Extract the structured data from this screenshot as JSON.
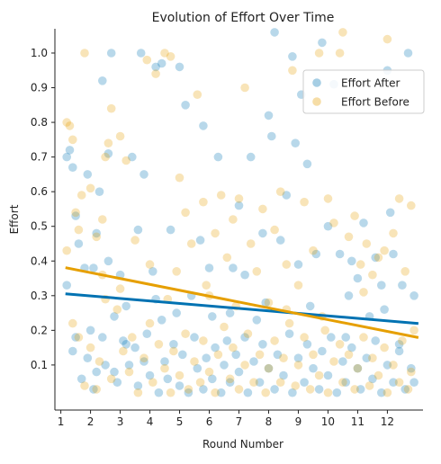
{
  "chart_data": {
    "type": "scatter",
    "title": "Evolution of Effort Over Time",
    "xlabel": "Round Number",
    "ylabel": "Effort",
    "x_ticks": [
      1,
      2,
      3,
      4,
      5,
      6,
      7,
      8,
      9,
      10,
      11,
      12
    ],
    "y_ticks": [
      0.1,
      0.2,
      0.3,
      0.4,
      0.5,
      0.6,
      0.7,
      0.8,
      0.9,
      1.0
    ],
    "xlim": [
      0.8,
      13.2
    ],
    "ylim": [
      -0.03,
      1.07
    ],
    "grid": false,
    "legend_position": "top-right",
    "series": [
      {
        "name": "Effort After",
        "color": "#0072b2",
        "points": [
          [
            1.2,
            0.7
          ],
          [
            1.3,
            0.72
          ],
          [
            1.4,
            0.67
          ],
          [
            1.5,
            0.53
          ],
          [
            1.6,
            0.45
          ],
          [
            1.8,
            0.38
          ],
          [
            1.9,
            0.65
          ],
          [
            2.0,
            0.2
          ],
          [
            2.1,
            0.38
          ],
          [
            2.2,
            0.48
          ],
          [
            2.3,
            0.6
          ],
          [
            2.4,
            0.92
          ],
          [
            2.6,
            0.71
          ],
          [
            2.7,
            1.0
          ],
          [
            2.8,
            0.24
          ],
          [
            3.0,
            0.36
          ],
          [
            3.2,
            0.16
          ],
          [
            3.4,
            0.7
          ],
          [
            3.6,
            0.49
          ],
          [
            3.7,
            1.0
          ],
          [
            3.8,
            0.65
          ],
          [
            4.1,
            0.37
          ],
          [
            4.2,
            0.96
          ],
          [
            4.4,
            0.97
          ],
          [
            4.7,
            0.49
          ],
          [
            4.9,
            0.25
          ],
          [
            5.0,
            0.96
          ],
          [
            5.2,
            0.85
          ],
          [
            5.4,
            0.3
          ],
          [
            5.7,
            0.46
          ],
          [
            5.8,
            0.79
          ],
          [
            6.0,
            0.38
          ],
          [
            6.1,
            0.24
          ],
          [
            6.3,
            0.7
          ],
          [
            6.6,
            0.17
          ],
          [
            6.8,
            0.38
          ],
          [
            7.0,
            0.56
          ],
          [
            7.2,
            0.36
          ],
          [
            7.4,
            0.7
          ],
          [
            7.6,
            0.23
          ],
          [
            7.8,
            0.48
          ],
          [
            8.0,
            0.82
          ],
          [
            8.1,
            0.76
          ],
          [
            8.2,
            1.06
          ],
          [
            8.4,
            0.46
          ],
          [
            8.6,
            0.59
          ],
          [
            8.8,
            0.99
          ],
          [
            8.9,
            0.74
          ],
          [
            9.0,
            0.39
          ],
          [
            9.1,
            0.88
          ],
          [
            9.3,
            0.68
          ],
          [
            9.6,
            0.42
          ],
          [
            9.8,
            1.03
          ],
          [
            10.0,
            0.5
          ],
          [
            10.2,
            0.91
          ],
          [
            10.4,
            0.42
          ],
          [
            10.6,
            0.18
          ],
          [
            10.8,
            0.4
          ],
          [
            11.0,
            0.35
          ],
          [
            11.2,
            0.51
          ],
          [
            11.4,
            0.24
          ],
          [
            11.6,
            0.41
          ],
          [
            11.8,
            0.33
          ],
          [
            12.0,
            0.95
          ],
          [
            12.1,
            0.54
          ],
          [
            12.2,
            0.42
          ],
          [
            12.4,
            0.14
          ],
          [
            12.5,
            0.33
          ],
          [
            12.7,
            1.0
          ],
          [
            12.9,
            0.3
          ],
          [
            1.2,
            0.33
          ],
          [
            1.4,
            0.14
          ],
          [
            1.5,
            0.18
          ],
          [
            1.7,
            0.06
          ],
          [
            1.9,
            0.12
          ],
          [
            2.1,
            0.03
          ],
          [
            2.2,
            0.08
          ],
          [
            2.4,
            0.18
          ],
          [
            2.5,
            0.1
          ],
          [
            2.6,
            0.4
          ],
          [
            2.8,
            0.08
          ],
          [
            2.9,
            0.05
          ],
          [
            3.1,
            0.17
          ],
          [
            3.3,
            0.1
          ],
          [
            3.5,
            0.15
          ],
          [
            3.6,
            0.04
          ],
          [
            3.8,
            0.11
          ],
          [
            3.9,
            0.19
          ],
          [
            4.0,
            0.07
          ],
          [
            4.2,
            0.29
          ],
          [
            4.3,
            0.02
          ],
          [
            4.5,
            0.11
          ],
          [
            4.6,
            0.06
          ],
          [
            4.8,
            0.16
          ],
          [
            5.0,
            0.04
          ],
          [
            5.1,
            0.13
          ],
          [
            5.3,
            0.02
          ],
          [
            5.5,
            0.18
          ],
          [
            5.6,
            0.09
          ],
          [
            5.8,
            0.03
          ],
          [
            5.9,
            0.12
          ],
          [
            6.1,
            0.06
          ],
          [
            6.2,
            0.15
          ],
          [
            6.4,
            0.02
          ],
          [
            6.5,
            0.1
          ],
          [
            6.7,
            0.05
          ],
          [
            6.9,
            0.13
          ],
          [
            7.0,
            0.08
          ],
          [
            7.2,
            0.18
          ],
          [
            7.3,
            0.02
          ],
          [
            7.5,
            0.11
          ],
          [
            7.7,
            0.05
          ],
          [
            7.8,
            0.16
          ],
          [
            8.0,
            0.09
          ],
          [
            8.2,
            0.03
          ],
          [
            8.3,
            0.13
          ],
          [
            8.5,
            0.07
          ],
          [
            8.7,
            0.19
          ],
          [
            8.8,
            0.02
          ],
          [
            9.0,
            0.12
          ],
          [
            9.2,
            0.05
          ],
          [
            9.3,
            0.16
          ],
          [
            9.5,
            0.09
          ],
          [
            9.7,
            0.03
          ],
          [
            9.8,
            0.14
          ],
          [
            10.0,
            0.07
          ],
          [
            10.1,
            0.18
          ],
          [
            10.3,
            0.02
          ],
          [
            10.5,
            0.11
          ],
          [
            10.6,
            0.05
          ],
          [
            10.8,
            0.15
          ],
          [
            11.0,
            0.09
          ],
          [
            11.1,
            0.03
          ],
          [
            11.3,
            0.12
          ],
          [
            11.5,
            0.06
          ],
          [
            11.6,
            0.17
          ],
          [
            11.8,
            0.02
          ],
          [
            12.0,
            0.1
          ],
          [
            12.2,
            0.05
          ],
          [
            12.4,
            0.16
          ],
          [
            12.6,
            0.03
          ],
          [
            12.8,
            0.09
          ],
          [
            12.9,
            0.05
          ],
          [
            4.4,
            0.23
          ],
          [
            6.7,
            0.25
          ],
          [
            9.4,
            0.27
          ],
          [
            11.9,
            0.26
          ],
          [
            3.2,
            0.27
          ],
          [
            7.9,
            0.28
          ],
          [
            10.7,
            0.3
          ]
        ],
        "trend": [
          [
            1.2,
            0.305
          ],
          [
            13.0,
            0.22
          ]
        ]
      },
      {
        "name": "Effort Before",
        "color": "#e69f00",
        "points": [
          [
            1.2,
            0.8
          ],
          [
            1.3,
            0.79
          ],
          [
            1.4,
            0.75
          ],
          [
            1.5,
            0.54
          ],
          [
            1.6,
            0.49
          ],
          [
            1.7,
            0.59
          ],
          [
            1.8,
            1.0
          ],
          [
            2.0,
            0.61
          ],
          [
            2.2,
            0.47
          ],
          [
            2.4,
            0.52
          ],
          [
            2.5,
            0.7
          ],
          [
            2.6,
            0.74
          ],
          [
            2.7,
            0.84
          ],
          [
            3.0,
            0.76
          ],
          [
            3.2,
            0.69
          ],
          [
            3.5,
            0.46
          ],
          [
            3.9,
            0.98
          ],
          [
            4.0,
            0.39
          ],
          [
            4.2,
            0.94
          ],
          [
            4.5,
            1.0
          ],
          [
            4.7,
            0.99
          ],
          [
            4.9,
            0.37
          ],
          [
            5.0,
            0.64
          ],
          [
            5.2,
            0.54
          ],
          [
            5.4,
            0.45
          ],
          [
            5.6,
            0.88
          ],
          [
            5.8,
            0.57
          ],
          [
            6.0,
            0.3
          ],
          [
            6.2,
            0.48
          ],
          [
            6.4,
            0.59
          ],
          [
            6.6,
            0.41
          ],
          [
            6.8,
            0.52
          ],
          [
            7.0,
            0.58
          ],
          [
            7.2,
            0.9
          ],
          [
            7.4,
            0.45
          ],
          [
            7.6,
            0.37
          ],
          [
            7.8,
            0.55
          ],
          [
            8.0,
            0.28
          ],
          [
            8.2,
            0.49
          ],
          [
            8.4,
            0.6
          ],
          [
            8.6,
            0.39
          ],
          [
            8.8,
            0.95
          ],
          [
            9.0,
            0.33
          ],
          [
            9.2,
            0.57
          ],
          [
            9.5,
            0.43
          ],
          [
            9.7,
            1.0
          ],
          [
            10.0,
            0.58
          ],
          [
            10.2,
            0.51
          ],
          [
            10.4,
            1.0
          ],
          [
            10.5,
            1.06
          ],
          [
            10.7,
            0.47
          ],
          [
            10.9,
            0.53
          ],
          [
            11.1,
            0.39
          ],
          [
            11.3,
            0.45
          ],
          [
            11.5,
            0.36
          ],
          [
            11.7,
            0.41
          ],
          [
            11.9,
            0.43
          ],
          [
            12.0,
            1.04
          ],
          [
            12.2,
            0.48
          ],
          [
            12.4,
            0.58
          ],
          [
            12.6,
            0.37
          ],
          [
            12.8,
            0.56
          ],
          [
            12.9,
            0.2
          ],
          [
            1.2,
            0.43
          ],
          [
            1.4,
            0.22
          ],
          [
            1.6,
            0.18
          ],
          [
            1.8,
            0.04
          ],
          [
            2.0,
            0.15
          ],
          [
            2.2,
            0.03
          ],
          [
            2.3,
            0.11
          ],
          [
            2.5,
            0.29
          ],
          [
            2.7,
            0.06
          ],
          [
            2.9,
            0.26
          ],
          [
            3.1,
            0.14
          ],
          [
            3.3,
            0.08
          ],
          [
            3.4,
            0.18
          ],
          [
            3.6,
            0.02
          ],
          [
            3.8,
            0.12
          ],
          [
            4.0,
            0.22
          ],
          [
            4.1,
            0.05
          ],
          [
            4.3,
            0.16
          ],
          [
            4.5,
            0.09
          ],
          [
            4.7,
            0.02
          ],
          [
            4.8,
            0.14
          ],
          [
            5.0,
            0.07
          ],
          [
            5.2,
            0.19
          ],
          [
            5.3,
            0.03
          ],
          [
            5.5,
            0.11
          ],
          [
            5.7,
            0.05
          ],
          [
            5.8,
            0.17
          ],
          [
            6.0,
            0.08
          ],
          [
            6.2,
            0.02
          ],
          [
            6.3,
            0.13
          ],
          [
            6.5,
            0.21
          ],
          [
            6.7,
            0.06
          ],
          [
            6.8,
            0.15
          ],
          [
            7.0,
            0.03
          ],
          [
            7.2,
            0.1
          ],
          [
            7.3,
            0.19
          ],
          [
            7.5,
            0.05
          ],
          [
            7.7,
            0.13
          ],
          [
            7.9,
            0.02
          ],
          [
            8.0,
            0.09
          ],
          [
            8.2,
            0.17
          ],
          [
            8.4,
            0.05
          ],
          [
            8.5,
            0.12
          ],
          [
            8.7,
            0.22
          ],
          [
            8.9,
            0.04
          ],
          [
            9.0,
            0.1
          ],
          [
            9.2,
            0.18
          ],
          [
            9.4,
            0.03
          ],
          [
            9.5,
            0.13
          ],
          [
            9.7,
            0.07
          ],
          [
            9.9,
            0.2
          ],
          [
            10.0,
            0.02
          ],
          [
            10.2,
            0.11
          ],
          [
            10.4,
            0.16
          ],
          [
            10.5,
            0.05
          ],
          [
            10.7,
            0.13
          ],
          [
            10.9,
            0.03
          ],
          [
            11.0,
            0.09
          ],
          [
            11.2,
            0.18
          ],
          [
            11.4,
            0.04
          ],
          [
            11.5,
            0.12
          ],
          [
            11.7,
            0.07
          ],
          [
            11.9,
            0.15
          ],
          [
            12.0,
            0.02
          ],
          [
            12.2,
            0.1
          ],
          [
            12.4,
            0.05
          ],
          [
            12.5,
            0.17
          ],
          [
            12.7,
            0.03
          ],
          [
            12.8,
            0.08
          ],
          [
            3.0,
            0.32
          ],
          [
            5.9,
            0.33
          ],
          [
            8.6,
            0.26
          ],
          [
            11.2,
            0.31
          ],
          [
            2.4,
            0.36
          ],
          [
            6.9,
            0.27
          ],
          [
            9.8,
            0.24
          ],
          [
            4.6,
            0.29
          ]
        ],
        "trend": [
          [
            1.2,
            0.38
          ],
          [
            13.0,
            0.18
          ]
        ]
      }
    ]
  }
}
